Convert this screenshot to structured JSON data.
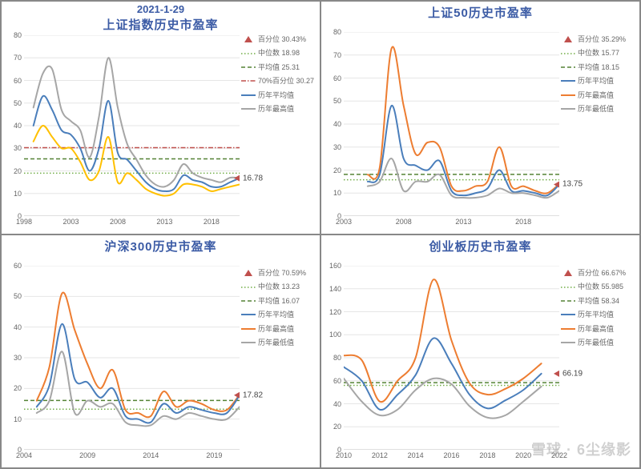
{
  "date_label": "2021-1-29",
  "watermark": "雪球 · 6尘缘影",
  "colors": {
    "title": "#3b5ba5",
    "grid": "#e6e6e6",
    "axis": "#bfbfbf",
    "percentile_marker": "#c0504d",
    "median_line": "#71ad47",
    "mean_line": "#548235",
    "pct70_line": "#c0504d",
    "series_avg": "#4a7ebb",
    "series_high": "#ed7d31",
    "series_low": "#a6a6a6",
    "series_yellow": "#ffc000"
  },
  "panels": [
    {
      "title": "上证指数历史市盈率",
      "show_date": true,
      "xlim": [
        1998,
        2021
      ],
      "xtick_step": 5,
      "xtick_start": 1998,
      "ylim": [
        0,
        80
      ],
      "ytick_step": 10,
      "median": 18.98,
      "mean": 25.31,
      "pct70": 30.27,
      "end_value": 16.78,
      "legend": [
        {
          "type": "triangle",
          "color": "#c0504d",
          "label": "百分位 30.43%"
        },
        {
          "type": "dot",
          "color": "#71ad47",
          "label": "中位数 18.98"
        },
        {
          "type": "dash",
          "color": "#548235",
          "label": "平均值 25.31"
        },
        {
          "type": "dashdot",
          "color": "#c0504d",
          "label": "70%百分位 30.27"
        },
        {
          "type": "line",
          "color": "#4a7ebb",
          "label": "历年平均值"
        },
        {
          "type": "line",
          "color": "#a6a6a6",
          "label": "历年最高值"
        }
      ],
      "series": [
        {
          "color": "#a6a6a6",
          "width": 2,
          "x": [
            1999,
            2000,
            2001,
            2002,
            2003,
            2004,
            2005,
            2006,
            2007,
            2008,
            2009,
            2010,
            2011,
            2012,
            2013,
            2014,
            2015,
            2016,
            2017,
            2018,
            2019,
            2020,
            2021
          ],
          "y": [
            48,
            63,
            65,
            47,
            42,
            38,
            26,
            44,
            70,
            48,
            32,
            25,
            18,
            14,
            13,
            16,
            23,
            19,
            17,
            16,
            15,
            17,
            16.78
          ]
        },
        {
          "color": "#4a7ebb",
          "width": 2,
          "x": [
            1999,
            2000,
            2001,
            2002,
            2003,
            2004,
            2005,
            2006,
            2007,
            2008,
            2009,
            2010,
            2011,
            2012,
            2013,
            2014,
            2015,
            2016,
            2017,
            2018,
            2019,
            2020,
            2021
          ],
          "y": [
            40,
            53,
            47,
            38,
            36,
            30,
            20,
            30,
            51,
            28,
            25,
            20,
            15,
            12,
            11,
            12,
            18,
            16,
            15,
            13,
            13,
            15,
            16.78
          ]
        },
        {
          "color": "#ffc000",
          "width": 2,
          "x": [
            1999,
            2000,
            2001,
            2002,
            2003,
            2004,
            2005,
            2006,
            2007,
            2008,
            2009,
            2010,
            2011,
            2012,
            2013,
            2014,
            2015,
            2016,
            2017,
            2018,
            2019,
            2020,
            2021
          ],
          "y": [
            33,
            40,
            35,
            30,
            30,
            24,
            16,
            20,
            35,
            15,
            19,
            16,
            12,
            10,
            9,
            10,
            14,
            14,
            13,
            11,
            12,
            13,
            14
          ]
        }
      ]
    },
    {
      "title": "上证50历史市盈率",
      "show_date": false,
      "xlim": [
        2003,
        2021
      ],
      "xtick_step": 5,
      "xtick_start": 2003,
      "ylim": [
        0,
        80
      ],
      "ytick_step": 10,
      "median": 15.77,
      "mean": 18.15,
      "end_value": 13.75,
      "legend": [
        {
          "type": "triangle",
          "color": "#c0504d",
          "label": "百分位 35.29%"
        },
        {
          "type": "dot",
          "color": "#71ad47",
          "label": "中位数 15.77"
        },
        {
          "type": "dash",
          "color": "#548235",
          "label": "平均值 18.15"
        },
        {
          "type": "line",
          "color": "#4a7ebb",
          "label": "历年平均值"
        },
        {
          "type": "line",
          "color": "#ed7d31",
          "label": "历年最高值"
        },
        {
          "type": "line",
          "color": "#a6a6a6",
          "label": "历年最低值"
        }
      ],
      "series": [
        {
          "color": "#ed7d31",
          "width": 2,
          "x": [
            2005,
            2006,
            2007,
            2008,
            2009,
            2010,
            2011,
            2012,
            2013,
            2014,
            2015,
            2016,
            2017,
            2018,
            2019,
            2020,
            2021
          ],
          "y": [
            18,
            21,
            73,
            48,
            27,
            32,
            30,
            13,
            11,
            13,
            15,
            30,
            13,
            13,
            11,
            10,
            14
          ]
        },
        {
          "color": "#4a7ebb",
          "width": 2,
          "x": [
            2005,
            2006,
            2007,
            2008,
            2009,
            2010,
            2011,
            2012,
            2013,
            2014,
            2015,
            2016,
            2017,
            2018,
            2019,
            2020,
            2021
          ],
          "y": [
            15,
            18,
            48,
            25,
            22,
            20,
            24,
            11,
            9,
            10,
            12,
            20,
            11,
            11,
            10,
            9,
            13.75
          ]
        },
        {
          "color": "#a6a6a6",
          "width": 2,
          "x": [
            2005,
            2006,
            2007,
            2008,
            2009,
            2010,
            2011,
            2012,
            2013,
            2014,
            2015,
            2016,
            2017,
            2018,
            2019,
            2020,
            2021
          ],
          "y": [
            13,
            15,
            25,
            11,
            15,
            15,
            18,
            9,
            8,
            8,
            9,
            12,
            10,
            10,
            9,
            8,
            11
          ]
        }
      ]
    },
    {
      "title": "沪深300历史市盈率",
      "show_date": false,
      "xlim": [
        2004,
        2021
      ],
      "xtick_step": 5,
      "xtick_start": 2004,
      "ylim": [
        0,
        60
      ],
      "ytick_step": 10,
      "median": 13.23,
      "mean": 16.07,
      "end_value": 17.82,
      "legend": [
        {
          "type": "triangle",
          "color": "#c0504d",
          "label": "百分位 70.59%"
        },
        {
          "type": "dot",
          "color": "#71ad47",
          "label": "中位数 13.23"
        },
        {
          "type": "dash",
          "color": "#548235",
          "label": "平均值 16.07"
        },
        {
          "type": "line",
          "color": "#4a7ebb",
          "label": "历年平均值"
        },
        {
          "type": "line",
          "color": "#ed7d31",
          "label": "历年最高值"
        },
        {
          "type": "line",
          "color": "#a6a6a6",
          "label": "历年最低值"
        }
      ],
      "series": [
        {
          "color": "#ed7d31",
          "width": 2,
          "x": [
            2005,
            2006,
            2007,
            2008,
            2009,
            2010,
            2011,
            2012,
            2013,
            2014,
            2015,
            2016,
            2017,
            2018,
            2019,
            2020,
            2021
          ],
          "y": [
            16,
            27,
            51,
            39,
            28,
            20,
            26,
            13,
            12,
            11,
            19,
            14,
            16,
            15,
            13,
            13,
            18
          ]
        },
        {
          "color": "#4a7ebb",
          "width": 2,
          "x": [
            2005,
            2006,
            2007,
            2008,
            2009,
            2010,
            2011,
            2012,
            2013,
            2014,
            2015,
            2016,
            2017,
            2018,
            2019,
            2020,
            2021
          ],
          "y": [
            14,
            21,
            41,
            23,
            22,
            17,
            20,
            11,
            10,
            9,
            15,
            12,
            14,
            13,
            12,
            12,
            17.82
          ]
        },
        {
          "color": "#a6a6a6",
          "width": 2,
          "x": [
            2005,
            2006,
            2007,
            2008,
            2009,
            2010,
            2011,
            2012,
            2013,
            2014,
            2015,
            2016,
            2017,
            2018,
            2019,
            2020,
            2021
          ],
          "y": [
            12,
            16,
            32,
            12,
            16,
            14,
            15,
            9,
            8,
            8,
            11,
            10,
            12,
            11,
            10,
            10,
            14
          ]
        }
      ]
    },
    {
      "title": "创业板历史市盈率",
      "show_date": false,
      "xlim": [
        2010,
        2022
      ],
      "xtick_step": 2,
      "xtick_start": 2010,
      "ylim": [
        0,
        160
      ],
      "ytick_step": 20,
      "median": 55.985,
      "mean": 58.34,
      "end_value": 66.19,
      "legend": [
        {
          "type": "triangle",
          "color": "#c0504d",
          "label": "百分位 66.67%"
        },
        {
          "type": "dot",
          "color": "#71ad47",
          "label": "中位数 55.985"
        },
        {
          "type": "dash",
          "color": "#548235",
          "label": "平均值 58.34"
        },
        {
          "type": "line",
          "color": "#4a7ebb",
          "label": "历年平均值"
        },
        {
          "type": "line",
          "color": "#ed7d31",
          "label": "历年最高值"
        },
        {
          "type": "line",
          "color": "#a6a6a6",
          "label": "历年最低值"
        }
      ],
      "series": [
        {
          "color": "#ed7d31",
          "width": 2,
          "x": [
            2010,
            2011,
            2012,
            2013,
            2014,
            2015,
            2016,
            2017,
            2018,
            2019,
            2020,
            2021
          ],
          "y": [
            82,
            78,
            42,
            60,
            80,
            148,
            95,
            58,
            48,
            53,
            62,
            75
          ]
        },
        {
          "color": "#4a7ebb",
          "width": 2,
          "x": [
            2010,
            2011,
            2012,
            2013,
            2014,
            2015,
            2016,
            2017,
            2018,
            2019,
            2020,
            2021
          ],
          "y": [
            72,
            60,
            35,
            48,
            65,
            97,
            75,
            48,
            36,
            43,
            52,
            66.19
          ]
        },
        {
          "color": "#a6a6a6",
          "width": 2,
          "x": [
            2010,
            2011,
            2012,
            2013,
            2014,
            2015,
            2016,
            2017,
            2018,
            2019,
            2020,
            2021
          ],
          "y": [
            62,
            42,
            30,
            35,
            52,
            62,
            57,
            38,
            28,
            30,
            42,
            55
          ]
        }
      ]
    }
  ]
}
